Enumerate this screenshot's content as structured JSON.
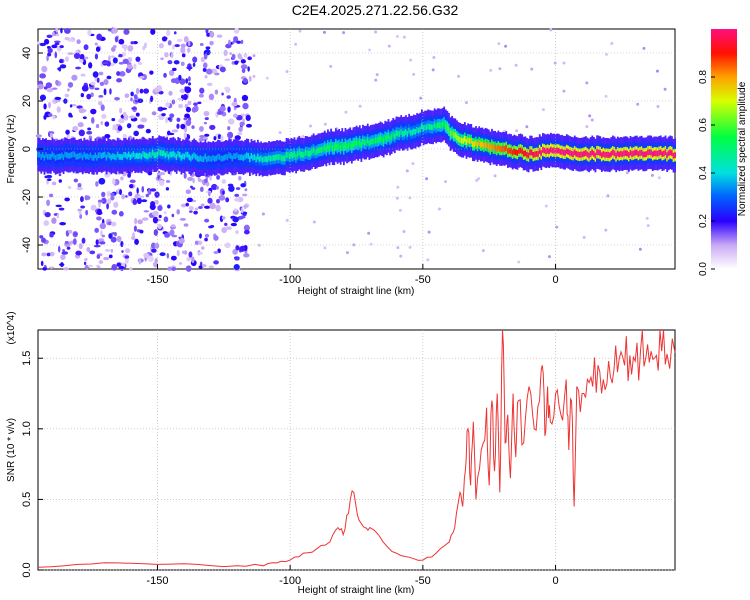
{
  "title": "C2E4.2025.271.22.56.G32",
  "chart_data": [
    {
      "type": "heatmap",
      "xlabel": "Height of straight line (km)",
      "ylabel": "Frequency (Hz)",
      "xlim": [
        -195,
        45
      ],
      "ylim": [
        -50,
        50
      ],
      "xticks": [
        -150,
        -100,
        -50,
        0
      ],
      "yticks": [
        -40,
        -20,
        0,
        20,
        40
      ],
      "xtick_labels": [
        "-150",
        "-100",
        "-50",
        "0"
      ],
      "ytick_labels": [
        "-40",
        "-20",
        "0",
        "20",
        "40"
      ],
      "grid": true,
      "colorbar": {
        "label": "Normalized spectral amplitude",
        "range": [
          0.0,
          1.0
        ],
        "ticks": [
          0.0,
          0.2,
          0.4,
          0.6,
          0.8
        ],
        "tick_labels": [
          "0.0",
          "0.2",
          "0.4",
          "0.6",
          "0.8"
        ]
      },
      "ridge": {
        "x": [
          -195,
          -175,
          -160,
          -150,
          -140,
          -130,
          -120,
          -110,
          -100,
          -90,
          -85,
          -80,
          -75,
          -70,
          -65,
          -60,
          -55,
          -50,
          -45,
          -42,
          -40,
          -35,
          -30,
          -25,
          -20,
          -15,
          -10,
          -5,
          0,
          10,
          20,
          30,
          45
        ],
        "y": [
          -3,
          -3,
          -3,
          -2,
          -3,
          -4,
          -3,
          -4,
          -3,
          -1,
          1,
          1,
          2,
          3,
          4,
          6,
          7,
          9,
          10,
          10,
          7,
          4,
          2,
          1,
          0,
          -1,
          -2,
          -1,
          -1,
          -2,
          -2,
          -2,
          -2
        ],
        "amplitude": [
          0.35,
          0.35,
          0.4,
          0.45,
          0.4,
          0.35,
          0.35,
          0.45,
          0.5,
          0.5,
          0.55,
          0.55,
          0.55,
          0.5,
          0.55,
          0.5,
          0.45,
          0.45,
          0.5,
          0.55,
          0.6,
          0.7,
          0.75,
          0.8,
          0.85,
          0.9,
          0.95,
          1.0,
          1.0,
          1.0,
          1.0,
          1.0,
          1.0
        ]
      },
      "noise_region_x": [
        -195,
        -115
      ]
    },
    {
      "type": "line",
      "xlabel": "Height of straight line (km)",
      "ylabel": "SNR (10 * v/v)",
      "y_multiplier": "(x10^4)",
      "xlim": [
        -195,
        45
      ],
      "ylim": [
        0.0,
        1.7
      ],
      "xticks": [
        -150,
        -100,
        -50,
        0
      ],
      "yticks": [
        0.0,
        0.5,
        1.0,
        1.5
      ],
      "xtick_labels": [
        "-150",
        "-100",
        "-50",
        "0"
      ],
      "ytick_labels": [
        "0.0",
        "0.5",
        "1.0",
        "1.5"
      ],
      "grid": true,
      "series": [
        {
          "color": "#ee3333",
          "x": [
            -195,
            -180,
            -165,
            -150,
            -135,
            -120,
            -110,
            -105,
            -100,
            -95,
            -90,
            -85,
            -82,
            -80,
            -78,
            -76,
            -74,
            -72,
            -70,
            -65,
            -60,
            -55,
            -50,
            -45,
            -40,
            -38,
            -36,
            -35,
            -34,
            -33,
            -32,
            -31,
            -30,
            -28,
            -26,
            -25,
            -24,
            -23,
            -22,
            -21,
            -20,
            -19,
            -18,
            -17,
            -16,
            -15,
            -14,
            -12,
            -10,
            -8,
            -6,
            -5,
            -4,
            -3,
            -2,
            0,
            2,
            4,
            5,
            6,
            7,
            8,
            10,
            12,
            14,
            16,
            18,
            20,
            22,
            24,
            26,
            28,
            30,
            32,
            34,
            36,
            38,
            40,
            42,
            45
          ],
          "y": [
            0.02,
            0.04,
            0.05,
            0.04,
            0.04,
            0.03,
            0.03,
            0.05,
            0.07,
            0.12,
            0.15,
            0.2,
            0.3,
            0.25,
            0.4,
            0.55,
            0.35,
            0.3,
            0.3,
            0.2,
            0.12,
            0.09,
            0.07,
            0.12,
            0.2,
            0.3,
            0.55,
            0.45,
            0.7,
            1.0,
            0.6,
            1.05,
            0.5,
            0.85,
            1.15,
            0.6,
            1.2,
            0.7,
            1.25,
            0.55,
            1.7,
            0.9,
            1.1,
            0.65,
            1.25,
            0.8,
            1.2,
            0.9,
            1.3,
            1.0,
            1.2,
            1.45,
            0.95,
            1.3,
            1.05,
            1.25,
            1.1,
            1.35,
            0.85,
            1.2,
            0.45,
            1.3,
            1.25,
            1.35,
            1.3,
            1.45,
            1.35,
            1.48,
            1.42,
            1.5,
            1.45,
            1.52,
            1.48,
            1.55,
            1.5,
            1.55,
            1.52,
            1.55,
            1.53,
            1.54
          ]
        }
      ]
    }
  ]
}
